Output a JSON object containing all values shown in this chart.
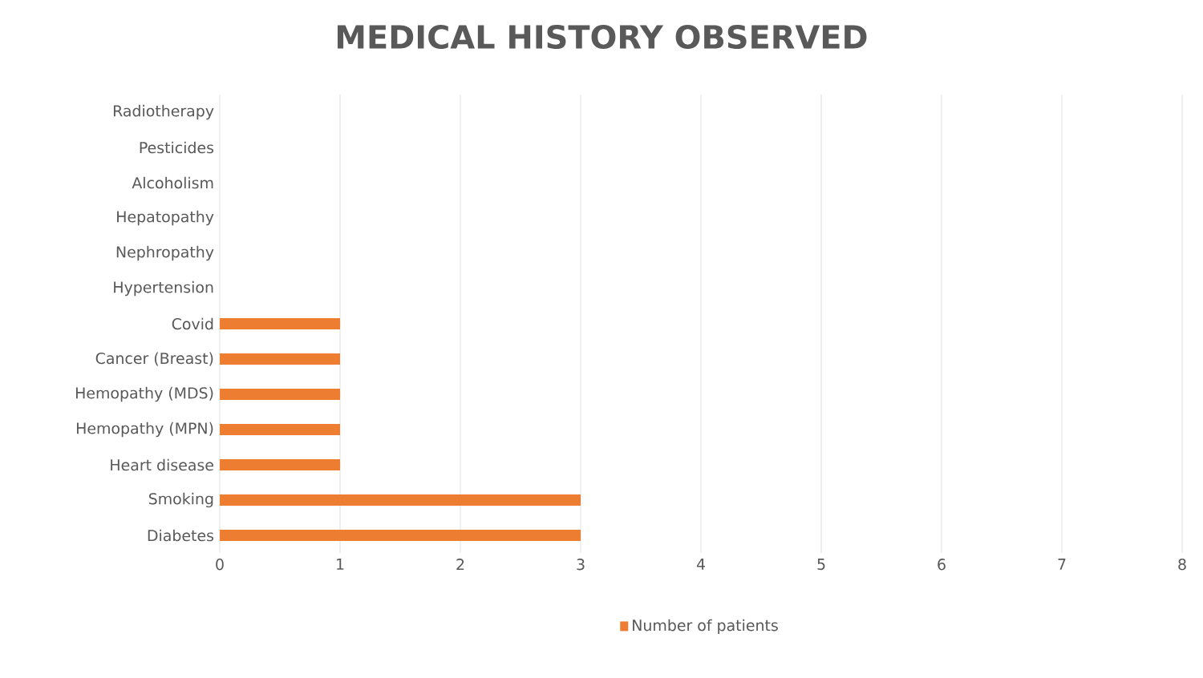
{
  "chart_data": {
    "type": "bar",
    "orientation": "horizontal",
    "title": "MEDICAL HISTORY OBSERVED",
    "categories": [
      "Radiotherapy",
      "Pesticides",
      "Alcoholism",
      "Hepatopathy",
      "Nephropathy",
      "Hypertension",
      "Covid",
      "Cancer (Breast)",
      "Hemopathy (MDS)",
      "Hemopathy (MPN)",
      "Heart disease",
      "Smoking",
      "Diabetes"
    ],
    "series": [
      {
        "name": "Number of patients",
        "color": "#ed7d31",
        "values": [
          0,
          0,
          0,
          0,
          0,
          0,
          1,
          1,
          1,
          1,
          1,
          3,
          3
        ]
      }
    ],
    "xlim": [
      0,
      8
    ],
    "xticks": [
      0,
      1,
      2,
      3,
      4,
      5,
      6,
      7,
      8
    ],
    "grid": "x",
    "legend": "bottom"
  }
}
